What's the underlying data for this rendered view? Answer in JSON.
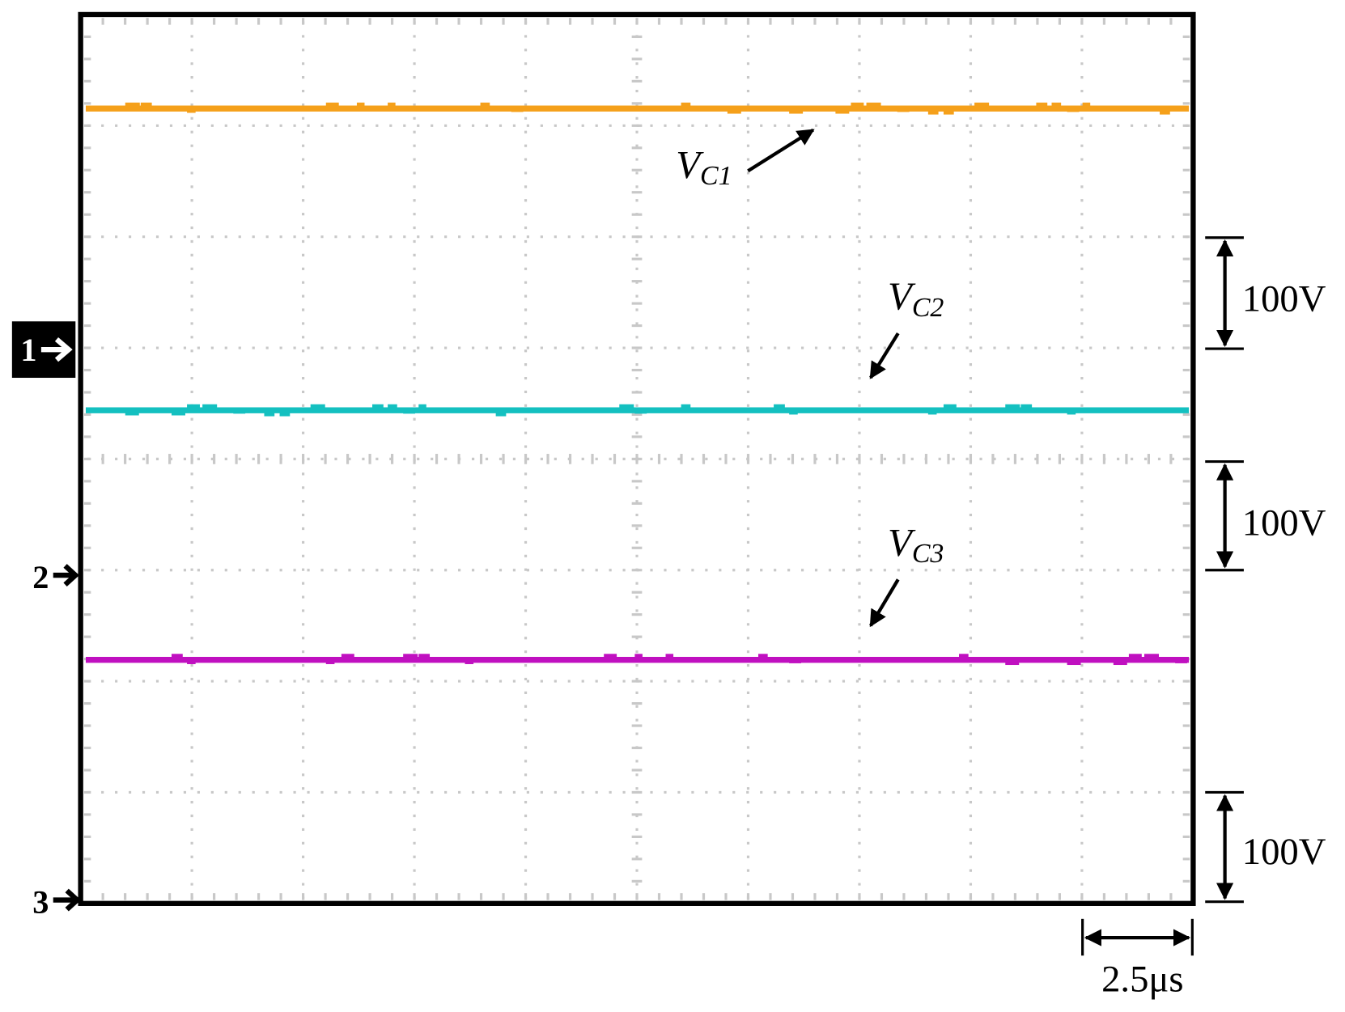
{
  "channels": [
    "1",
    "2",
    "3"
  ],
  "traces": [
    {
      "label": {
        "main": "V",
        "sub": "C1"
      }
    },
    {
      "label": {
        "main": "V",
        "sub": "C2"
      }
    },
    {
      "label": {
        "main": "V",
        "sub": "C3"
      }
    }
  ],
  "vertical_scales": [
    "100V",
    "100V",
    "100V"
  ],
  "time_scale": "2.5μs"
}
